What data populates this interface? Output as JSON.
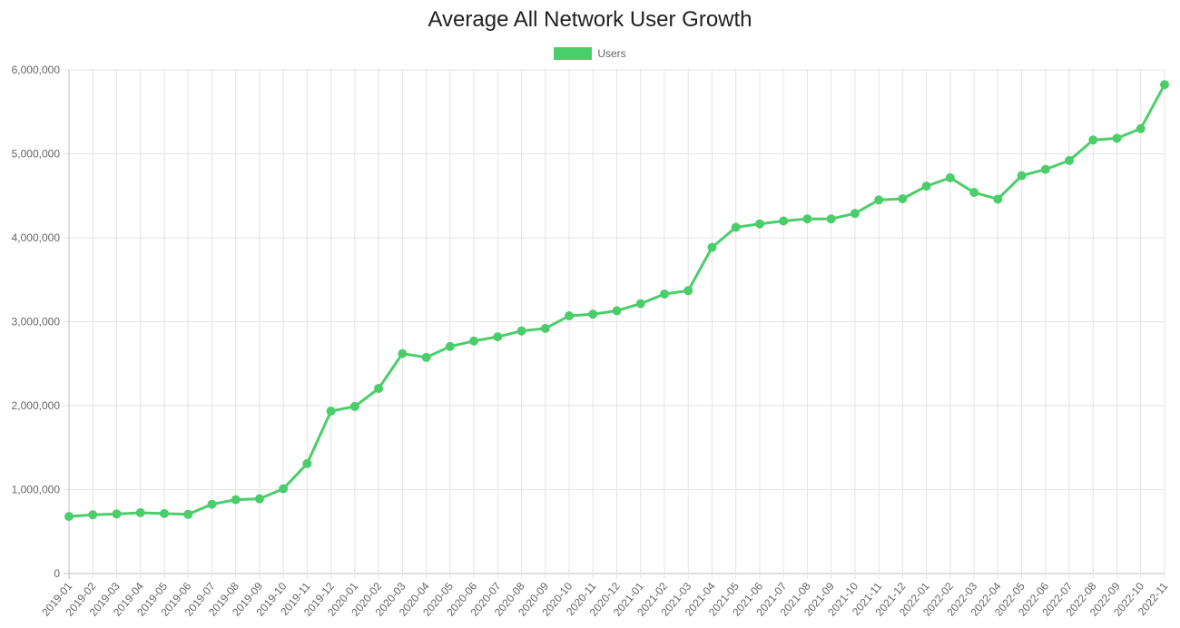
{
  "chart_data": {
    "type": "line",
    "title": "Average All Network User Growth",
    "xlabel": "",
    "ylabel": "",
    "ylim": [
      0,
      6000000
    ],
    "y_ticks": [
      "0",
      "1,000,000",
      "2,000,000",
      "3,000,000",
      "4,000,000",
      "5,000,000",
      "6,000,000"
    ],
    "grid": true,
    "legend_position": "top",
    "categories": [
      "2019-01",
      "2019-02",
      "2019-03",
      "2019-04",
      "2019-05",
      "2019-06",
      "2019-07",
      "2019-08",
      "2019-09",
      "2019-10",
      "2019-11",
      "2019-12",
      "2020-01",
      "2020-02",
      "2020-03",
      "2020-04",
      "2020-05",
      "2020-06",
      "2020-07",
      "2020-08",
      "2020-09",
      "2020-10",
      "2020-11",
      "2020-12",
      "2021-01",
      "2021-02",
      "2021-03",
      "2021-04",
      "2021-05",
      "2021-06",
      "2021-07",
      "2021-08",
      "2021-09",
      "2021-10",
      "2021-11",
      "2021-12",
      "2022-01",
      "2022-02",
      "2022-03",
      "2022-04",
      "2022-05",
      "2022-06",
      "2022-07",
      "2022-08",
      "2022-09",
      "2022-10",
      "2022-11"
    ],
    "series": [
      {
        "name": "Users",
        "color": "#4bce6a",
        "values": [
          680000,
          700000,
          710000,
          725000,
          715000,
          705000,
          825000,
          880000,
          890000,
          1010000,
          1310000,
          1935000,
          1990000,
          2205000,
          2620000,
          2575000,
          2705000,
          2770000,
          2820000,
          2890000,
          2920000,
          3070000,
          3090000,
          3130000,
          3215000,
          3330000,
          3370000,
          3885000,
          4125000,
          4165000,
          4200000,
          4225000,
          4225000,
          4290000,
          4450000,
          4465000,
          4615000,
          4715000,
          4540000,
          4460000,
          4740000,
          4815000,
          4920000,
          5165000,
          5185000,
          5300000,
          5825000
        ]
      }
    ]
  }
}
